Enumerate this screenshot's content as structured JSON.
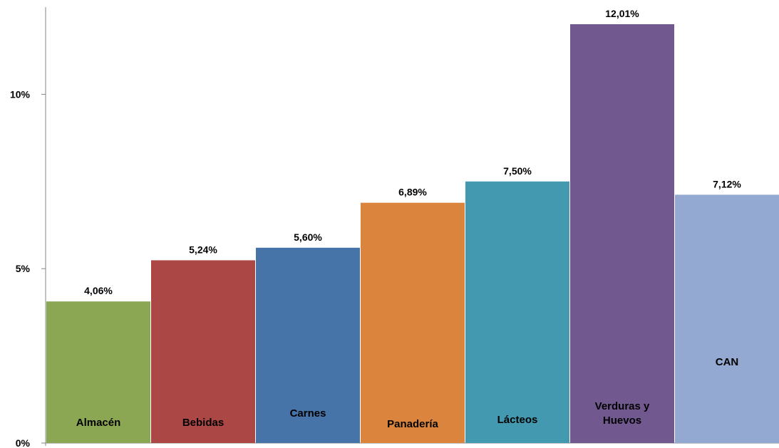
{
  "chart_data": {
    "type": "bar",
    "categories": [
      "Almacén",
      "Bebidas",
      "Carnes",
      "Panadería",
      "Lácteos",
      "Verduras y Huevos",
      "CAN"
    ],
    "category_lines": [
      [
        "Almacén"
      ],
      [
        "Bebidas"
      ],
      [
        "Carnes"
      ],
      [
        "Panadería"
      ],
      [
        "Lácteos"
      ],
      [
        "Verduras y",
        "Huevos"
      ],
      [
        "CAN"
      ]
    ],
    "values": [
      4.06,
      5.24,
      5.6,
      6.89,
      7.5,
      12.01,
      7.12
    ],
    "data_labels": [
      "4,06%",
      "5,24%",
      "5,60%",
      "6,89%",
      "7,50%",
      "12,01%",
      "7,12%"
    ],
    "colors": [
      "#8CA753",
      "#AB4744",
      "#4673A8",
      "#DB843D",
      "#4299B0",
      "#71588F",
      "#94A9D1"
    ],
    "ylim": [
      0,
      12.5
    ],
    "y_ticks": [
      0,
      5,
      10
    ],
    "y_tick_labels": [
      "0%",
      "5%",
      "10%"
    ],
    "title": "",
    "xlabel": "",
    "ylabel": "",
    "grid": false,
    "legend": "none"
  }
}
